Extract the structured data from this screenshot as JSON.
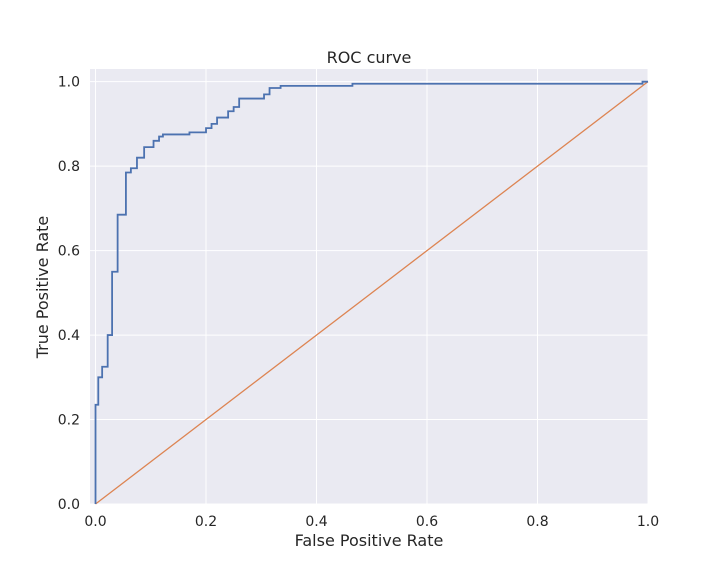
{
  "chart_data": {
    "type": "line",
    "title": "ROC curve",
    "xlabel": "False Positive Rate",
    "ylabel": "True Positive Rate",
    "xlim": [
      -0.01,
      1.0
    ],
    "ylim": [
      0.0,
      1.03
    ],
    "xticks": [
      "0.0",
      "0.2",
      "0.4",
      "0.6",
      "0.8",
      "1.0"
    ],
    "yticks": [
      "0.0",
      "0.2",
      "0.4",
      "0.6",
      "0.8",
      "1.0"
    ],
    "grid": true,
    "colors": {
      "plot_background": "#eaeaf2",
      "roc_line": "#4c72b0",
      "diagonal_line": "#dd8452"
    },
    "series": [
      {
        "step": "post",
        "x": [
          0.0,
          0.0,
          0.005,
          0.005,
          0.012,
          0.012,
          0.022,
          0.022,
          0.03,
          0.03,
          0.04,
          0.04,
          0.055,
          0.055,
          0.064,
          0.064,
          0.075,
          0.075,
          0.088,
          0.088,
          0.105,
          0.105,
          0.115,
          0.115,
          0.122,
          0.122,
          0.17,
          0.17,
          0.2,
          0.2,
          0.21,
          0.21,
          0.22,
          0.22,
          0.24,
          0.24,
          0.25,
          0.25,
          0.26,
          0.26,
          0.305,
          0.305,
          0.315,
          0.315,
          0.335,
          0.335,
          0.465,
          0.465,
          0.99,
          0.99,
          1.0
        ],
        "y": [
          0.0,
          0.235,
          0.235,
          0.3,
          0.3,
          0.325,
          0.325,
          0.4,
          0.4,
          0.55,
          0.55,
          0.685,
          0.685,
          0.785,
          0.785,
          0.795,
          0.795,
          0.82,
          0.82,
          0.845,
          0.845,
          0.86,
          0.86,
          0.87,
          0.87,
          0.875,
          0.875,
          0.88,
          0.88,
          0.89,
          0.89,
          0.9,
          0.9,
          0.915,
          0.915,
          0.93,
          0.93,
          0.94,
          0.94,
          0.96,
          0.96,
          0.97,
          0.97,
          0.985,
          0.985,
          0.99,
          0.99,
          0.995,
          0.995,
          1.0,
          1.0
        ]
      },
      {
        "x": [
          0.0,
          1.0
        ],
        "y": [
          0.0,
          1.0
        ]
      }
    ]
  }
}
